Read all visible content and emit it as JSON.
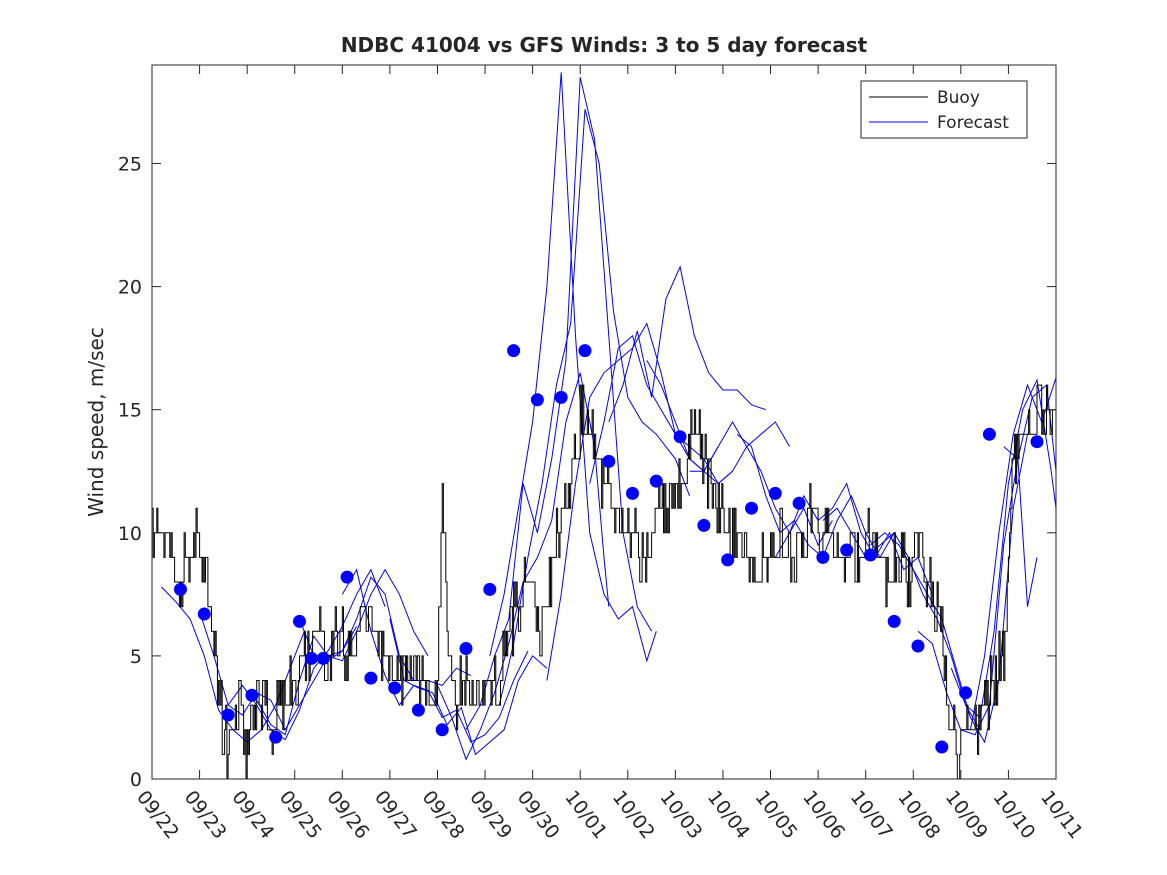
{
  "chart_data": {
    "type": "line",
    "title": "NDBC 41004 vs GFS Winds: 3 to 5 day forecast",
    "xlabel": "",
    "ylabel": "Wind speed, m/sec",
    "xlim": [
      0,
      19
    ],
    "ylim": [
      0,
      29
    ],
    "grid": false,
    "legend": {
      "position": "top-right",
      "entries": [
        "Buoy",
        "Forecast"
      ]
    },
    "x_tick_labels": [
      "09/22",
      "09/23",
      "09/24",
      "09/25",
      "09/26",
      "09/27",
      "09/28",
      "09/29",
      "09/30",
      "10/01",
      "10/02",
      "10/03",
      "10/04",
      "10/05",
      "10/06",
      "10/07",
      "10/08",
      "10/09",
      "10/10",
      "10/11"
    ],
    "y_ticks": [
      0,
      5,
      10,
      15,
      20,
      25
    ],
    "colors": {
      "buoy": "#000000",
      "forecast": "#0000ff",
      "axis": "#262626"
    },
    "series": [
      {
        "name": "Buoy",
        "style": "step",
        "x": [
          0,
          0.2,
          0.4,
          0.5,
          0.6,
          0.7,
          0.8,
          0.9,
          1.0,
          1.1,
          1.2,
          1.3,
          1.4,
          1.5,
          1.6,
          1.7,
          1.8,
          1.9,
          2.0,
          2.1,
          2.2,
          2.3,
          2.5,
          2.7,
          2.8,
          3.0,
          3.2,
          3.5,
          3.7,
          3.9,
          4.1,
          4.3,
          4.5,
          4.7,
          4.9,
          5.1,
          5.3,
          5.5,
          5.7,
          5.9,
          6.0,
          6.1,
          6.2,
          6.3,
          6.35,
          6.4,
          6.5,
          6.7,
          6.9,
          7.1,
          7.3,
          7.5,
          7.7,
          7.9,
          8.1,
          8.3,
          8.5,
          8.7,
          8.9,
          9.1,
          9.3,
          9.5,
          9.7,
          9.9,
          10.1,
          10.3,
          10.5,
          10.7,
          10.9,
          11.1,
          11.2,
          11.25,
          11.3,
          11.5,
          11.7,
          11.9,
          12.1,
          12.3,
          12.5,
          12.7,
          12.9,
          13.1,
          13.3,
          13.5,
          13.7,
          13.9,
          14.1,
          14.3,
          14.5,
          14.7,
          14.9,
          15.1,
          15.3,
          15.5,
          15.7,
          15.9,
          16.1,
          16.3,
          16.5,
          16.6,
          16.7,
          16.8,
          16.9,
          17.1,
          17.3,
          17.5,
          17.7,
          17.9,
          18.1,
          18.3,
          18.5,
          18.7,
          19.0
        ],
        "y": [
          10,
          10,
          9,
          8,
          8,
          9,
          9,
          10,
          10,
          8,
          7,
          5,
          3,
          2,
          1,
          2,
          3,
          2,
          1,
          2,
          3,
          3,
          2,
          3,
          3,
          4,
          5,
          6,
          5,
          6,
          5,
          6,
          7,
          6,
          5,
          4,
          4,
          5,
          4,
          3,
          4,
          12,
          5,
          4,
          3,
          2,
          4,
          4,
          3,
          4,
          4,
          6,
          7,
          8,
          6,
          7,
          10,
          11,
          14,
          15,
          13,
          12,
          11,
          10,
          10,
          9,
          10,
          11,
          11,
          12,
          12,
          13,
          14,
          14,
          12,
          11,
          10,
          10,
          9,
          8,
          9,
          9,
          10,
          9,
          10,
          11,
          10,
          10,
          9,
          9,
          9,
          10,
          9,
          8,
          9,
          8,
          9,
          8,
          7,
          6,
          3,
          2,
          1,
          2,
          2,
          3,
          4,
          5,
          13,
          14,
          14,
          15,
          15
        ]
      },
      {
        "name": "Forecast",
        "x": [
          0.2,
          0.5,
          0.8,
          1.1,
          1.4,
          1.7,
          2.0,
          2.3,
          2.6,
          2.9,
          3.2
        ],
        "y": [
          7.8,
          7.2,
          6.5,
          5.0,
          2.8,
          2.0,
          1.5,
          2.0,
          3.0,
          4.5,
          6.0
        ]
      },
      {
        "name": "Forecast",
        "x": [
          1.0,
          1.3,
          1.6,
          1.9,
          2.2,
          2.5,
          2.8,
          3.1,
          3.4,
          3.7,
          4.0,
          4.3
        ],
        "y": [
          6.8,
          5.0,
          3.0,
          2.6,
          3.5,
          3.2,
          2.0,
          3.0,
          4.0,
          5.0,
          5.2,
          6.2
        ]
      },
      {
        "name": "Forecast",
        "x": [
          1.6,
          1.9,
          2.2,
          2.5,
          2.8,
          3.1,
          3.4,
          3.7,
          4.0,
          4.3,
          4.6,
          4.9
        ],
        "y": [
          3.0,
          3.8,
          3.0,
          2.0,
          1.6,
          2.8,
          4.5,
          5.2,
          6.2,
          7.5,
          8.5,
          7.0
        ]
      },
      {
        "name": "Forecast",
        "x": [
          2.2,
          2.5,
          2.8,
          3.1,
          3.4,
          3.7,
          4.0,
          4.3,
          4.6,
          4.9,
          5.2,
          5.5,
          5.8
        ],
        "y": [
          3.2,
          2.2,
          1.8,
          4.0,
          5.8,
          5.0,
          4.8,
          6.0,
          7.5,
          8.5,
          7.5,
          6.0,
          5.0
        ]
      },
      {
        "name": "Forecast",
        "x": [
          3.1,
          3.4,
          3.7,
          4.0,
          4.3,
          4.6,
          4.9,
          5.2,
          5.5,
          5.8,
          6.1,
          6.4,
          6.7
        ],
        "y": [
          6.5,
          5.0,
          4.8,
          5.2,
          6.5,
          8.2,
          7.5,
          5.0,
          4.0,
          4.0,
          3.8,
          4.5,
          4.2
        ]
      },
      {
        "name": "Forecast",
        "x": [
          4.0,
          4.3,
          4.6,
          4.9,
          5.2,
          5.5,
          5.8,
          6.1,
          6.4,
          6.7,
          7.0,
          7.3,
          7.6,
          7.9
        ],
        "y": [
          7.5,
          8.5,
          6.0,
          4.2,
          3.0,
          3.8,
          3.6,
          2.5,
          2.8,
          1.5,
          1.8,
          2.5,
          4.0,
          5.2
        ]
      },
      {
        "name": "Forecast",
        "x": [
          5.0,
          5.3,
          5.6,
          5.9,
          6.2,
          6.5,
          6.8,
          7.1,
          7.4,
          7.7,
          8.0,
          8.3
        ],
        "y": [
          6.5,
          4.0,
          3.7,
          3.5,
          2.2,
          2.9,
          1.0,
          1.5,
          2.0,
          4.0,
          5.0,
          4.5
        ]
      },
      {
        "name": "Forecast",
        "x": [
          6.0,
          6.3,
          6.6,
          6.9,
          7.2,
          7.5,
          7.8,
          8.1,
          8.4,
          8.7,
          9.0,
          9.3,
          9.5,
          9.6
        ],
        "y": [
          3.8,
          2.5,
          0.8,
          2.0,
          3.5,
          5.5,
          8.0,
          9.0,
          10.5,
          14.5,
          16.5,
          13.5,
          9.0,
          7.0
        ]
      },
      {
        "name": "Forecast",
        "x": [
          6.6,
          6.9,
          7.2,
          7.5,
          7.8,
          8.1,
          8.4,
          8.7,
          9.0,
          9.3,
          9.6,
          9.9,
          10.2,
          10.5
        ],
        "y": [
          2.0,
          3.0,
          5.0,
          6.5,
          12.0,
          10.0,
          13.0,
          17.0,
          28.5,
          26.0,
          18.0,
          10.0,
          7.0,
          6.0
        ]
      },
      {
        "name": "Forecast",
        "x": [
          7.1,
          7.4,
          7.7,
          8.0,
          8.3,
          8.6,
          8.9,
          9.2,
          9.5,
          9.8,
          10.1,
          10.4,
          10.6
        ],
        "y": [
          5.0,
          7.5,
          11.0,
          14.5,
          20.0,
          28.7,
          18.0,
          10.0,
          7.5,
          6.5,
          7.0,
          4.8,
          6.0
        ]
      },
      {
        "name": "Forecast",
        "x": [
          7.3,
          7.6,
          7.9,
          8.2,
          8.5,
          8.8,
          9.1,
          9.4,
          9.7,
          10.0,
          10.3,
          10.6,
          11.0,
          11.3
        ],
        "y": [
          3.0,
          5.5,
          9.0,
          12.0,
          16.0,
          18.5,
          27.2,
          25.0,
          19.0,
          15.5,
          14.5,
          14.0,
          13.0,
          11.5
        ]
      },
      {
        "name": "Forecast",
        "x": [
          8.3,
          8.6,
          8.9,
          9.2,
          9.5,
          9.8,
          10.1,
          10.4,
          10.7,
          11.0,
          11.3,
          11.6,
          11.9
        ],
        "y": [
          4.0,
          7.5,
          12.0,
          15.5,
          16.5,
          17.0,
          17.5,
          18.5,
          16.5,
          14.0,
          13.0,
          12.5,
          13.5
        ]
      },
      {
        "name": "Forecast",
        "x": [
          9.2,
          9.5,
          9.8,
          10.1,
          10.4,
          10.7,
          11.0,
          11.3,
          11.6,
          11.9,
          12.2
        ],
        "y": [
          12.0,
          14.5,
          17.5,
          18.0,
          16.0,
          15.0,
          14.0,
          13.5,
          13.0,
          12.0,
          12.5
        ]
      },
      {
        "name": "Forecast",
        "x": [
          9.6,
          9.9,
          10.2,
          10.5,
          10.8,
          11.1,
          11.4,
          11.7,
          12.0,
          12.3,
          12.6,
          12.9
        ],
        "y": [
          14.5,
          16.0,
          18.2,
          15.5,
          19.5,
          20.8,
          18.0,
          16.5,
          15.8,
          15.8,
          15.2,
          15.0
        ]
      },
      {
        "name": "Forecast",
        "x": [
          10.4,
          10.7,
          11.0,
          11.3,
          11.6,
          11.9,
          12.2,
          12.5,
          12.8,
          13.1,
          13.4
        ],
        "y": [
          17.0,
          16.0,
          14.5,
          13.0,
          12.5,
          12.0,
          12.5,
          13.5,
          14.0,
          14.5,
          13.5
        ]
      },
      {
        "name": "Forecast",
        "x": [
          11.3,
          11.6,
          11.9,
          12.2,
          12.5,
          12.8,
          13.1,
          13.4,
          13.7,
          14.0,
          14.3
        ],
        "y": [
          12.5,
          12.5,
          13.5,
          14.5,
          13.5,
          12.5,
          11.0,
          10.0,
          11.0,
          9.5,
          10.5
        ]
      },
      {
        "name": "Forecast",
        "x": [
          12.3,
          12.6,
          12.9,
          13.2,
          13.5,
          13.8,
          14.1,
          14.4,
          14.7,
          15.0,
          15.3,
          15.6
        ],
        "y": [
          14.0,
          13.5,
          11.5,
          10.0,
          10.5,
          9.5,
          9.0,
          10.5,
          11.5,
          10.0,
          9.0,
          10.0
        ]
      },
      {
        "name": "Forecast",
        "x": [
          13.1,
          13.4,
          13.7,
          14.0,
          14.3,
          14.6,
          14.9,
          15.2,
          15.5,
          15.8,
          16.1,
          16.4
        ],
        "y": [
          9.0,
          10.0,
          11.5,
          10.5,
          11.0,
          12.0,
          10.0,
          9.0,
          10.0,
          8.5,
          9.0,
          7.5
        ]
      },
      {
        "name": "Forecast",
        "x": [
          14.1,
          14.4,
          14.7,
          15.0,
          15.3,
          15.6,
          15.9,
          16.2,
          16.5,
          16.8,
          17.1,
          17.4
        ],
        "y": [
          10.5,
          11.0,
          10.0,
          9.0,
          9.5,
          10.0,
          9.0,
          7.5,
          6.5,
          5.0,
          3.0,
          2.0
        ]
      },
      {
        "name": "Forecast",
        "x": [
          15.1,
          15.4,
          15.7,
          16.0,
          16.3,
          16.6,
          16.9,
          17.2,
          17.5,
          17.8,
          18.1,
          18.4
        ],
        "y": [
          9.5,
          10.0,
          9.5,
          8.5,
          7.5,
          6.5,
          4.5,
          2.5,
          1.5,
          4.0,
          11.0,
          14.0
        ]
      },
      {
        "name": "Forecast",
        "x": [
          16.1,
          16.4,
          16.7,
          17.0,
          17.3,
          17.6,
          17.9,
          18.2,
          18.5,
          18.8,
          19.0
        ],
        "y": [
          6.0,
          5.5,
          3.5,
          2.0,
          1.8,
          3.0,
          9.5,
          13.0,
          15.5,
          16.0,
          12.5
        ]
      },
      {
        "name": "Forecast",
        "x": [
          16.8,
          17.1,
          17.4,
          17.7,
          18.0,
          18.3,
          18.6,
          18.9,
          19.0
        ],
        "y": [
          4.5,
          3.0,
          2.5,
          6.0,
          12.0,
          15.0,
          16.2,
          12.5,
          11.0
        ]
      },
      {
        "name": "Forecast",
        "x": [
          17.2,
          17.5,
          17.8,
          18.1,
          18.4,
          18.7,
          19.0
        ],
        "y": [
          2.0,
          5.0,
          10.0,
          14.0,
          16.0,
          14.5,
          16.3
        ]
      },
      {
        "name": "Forecast",
        "x": [
          17.9,
          18.2,
          18.4,
          18.6
        ],
        "y": [
          13.5,
          13.0,
          7.0,
          9.0
        ]
      }
    ],
    "markers": {
      "name": "Forecast points",
      "x": [
        0.6,
        1.1,
        1.6,
        2.1,
        2.6,
        3.1,
        3.35,
        3.6,
        4.1,
        4.6,
        5.1,
        5.6,
        6.1,
        6.6,
        7.1,
        7.6,
        8.1,
        8.6,
        9.1,
        9.6,
        10.1,
        10.6,
        11.1,
        11.6,
        12.1,
        12.6,
        13.1,
        13.6,
        14.1,
        14.6,
        15.1,
        15.6,
        16.1,
        16.6,
        17.1,
        17.6,
        18.6
      ],
      "y": [
        7.7,
        6.7,
        2.6,
        3.4,
        1.7,
        6.4,
        4.9,
        4.9,
        8.2,
        4.1,
        3.7,
        2.8,
        2.0,
        5.3,
        7.7,
        17.4,
        15.4,
        15.5,
        17.4,
        12.9,
        11.6,
        12.1,
        13.9,
        10.3,
        8.9,
        11.0,
        11.6,
        11.2,
        9.0,
        9.3,
        9.1,
        6.4,
        5.4,
        1.3,
        3.5,
        14.0,
        13.7
      ]
    }
  }
}
